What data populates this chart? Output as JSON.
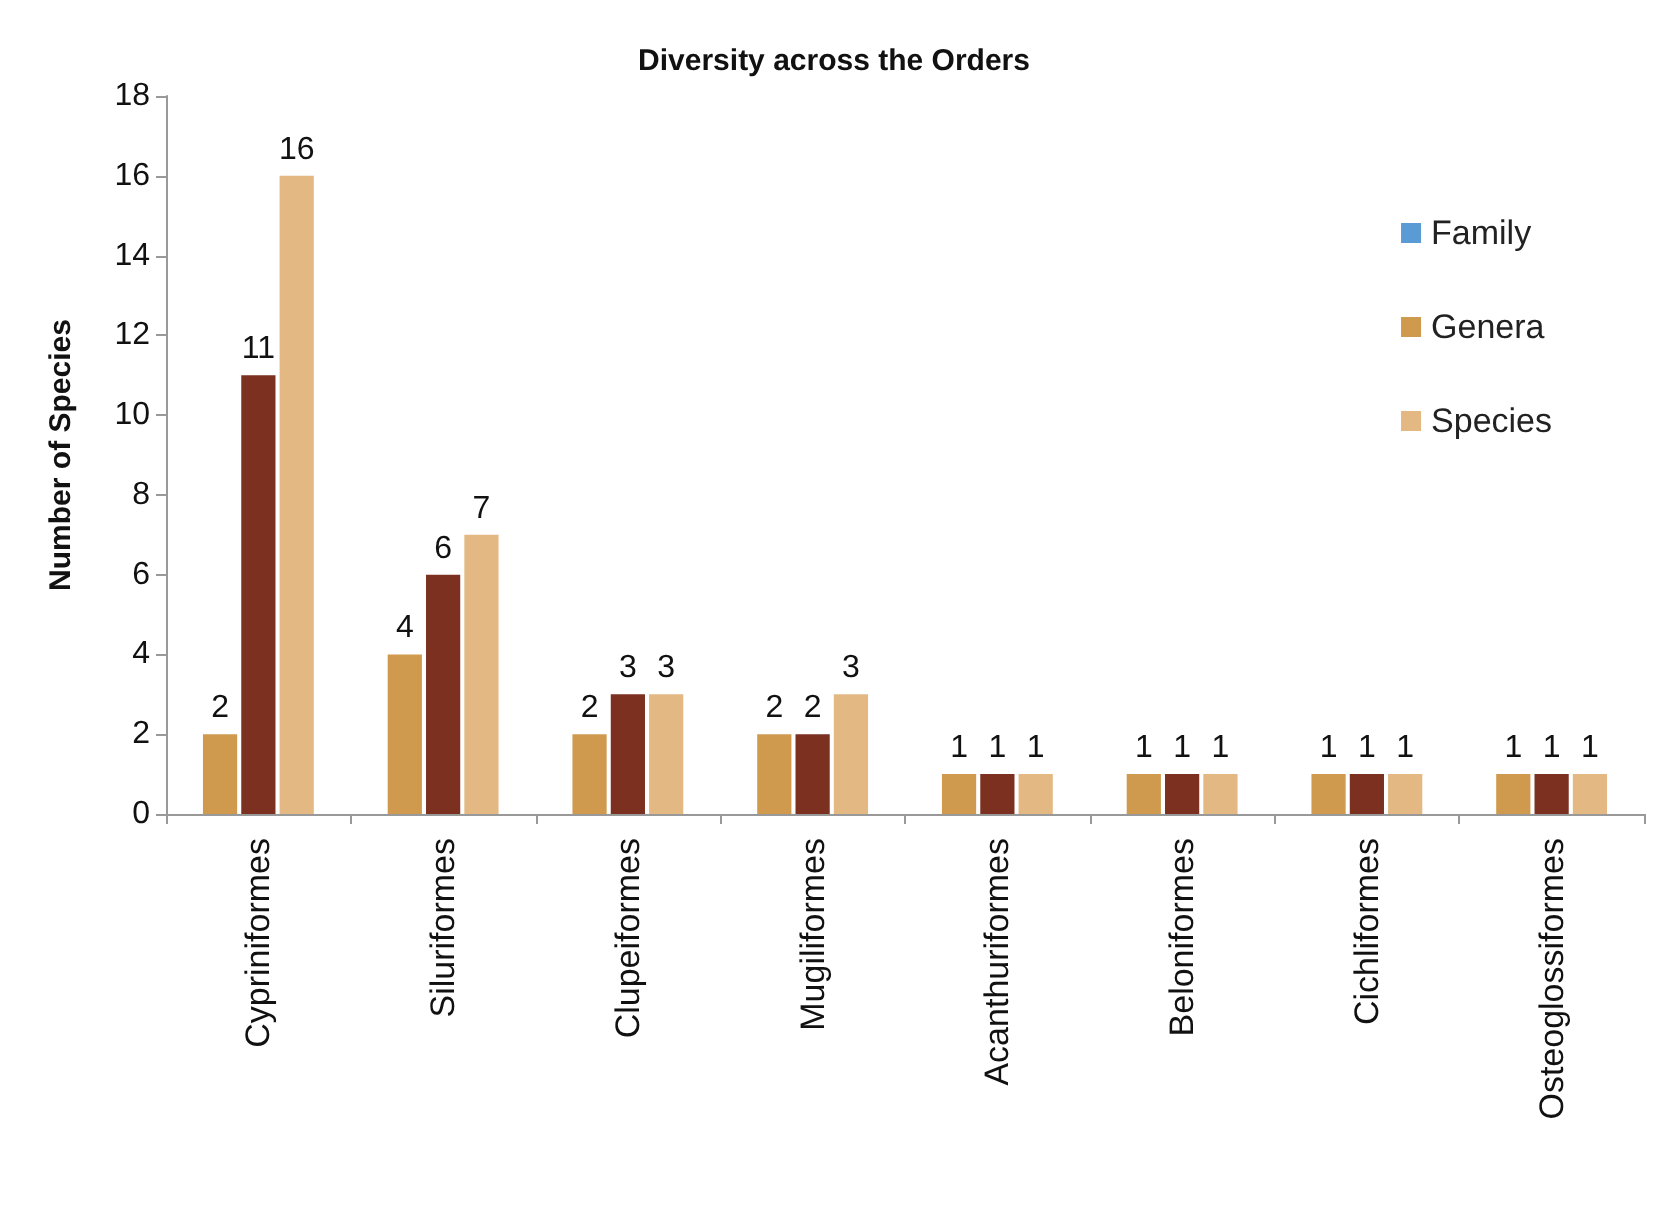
{
  "chart_data": {
    "type": "bar",
    "title": "Diversity across the Orders",
    "ylabel": "Number of Species",
    "categories": [
      "Cypriniformes",
      "Siluriformes",
      "Clupeiformes",
      "Mugiliformes",
      "Acanthuriformes",
      "Beloniformes",
      "Cichliformes",
      "Osteoglossiformes"
    ],
    "series": [
      {
        "name": "Family",
        "color": "#5b9bd5",
        "values": [
          null,
          null,
          null,
          null,
          null,
          null,
          null,
          null
        ]
      },
      {
        "name": "Genera",
        "color": "#d09a4e",
        "values": [
          2,
          4,
          2,
          2,
          1,
          1,
          1,
          1
        ]
      },
      {
        "color": "#7b3020",
        "values": [
          11,
          6,
          3,
          2,
          1,
          1,
          1,
          1
        ]
      },
      {
        "name": "Species",
        "color": "#e3b883",
        "values": [
          16,
          7,
          3,
          3,
          1,
          1,
          1,
          1
        ]
      }
    ],
    "ylim": [
      0,
      18
    ],
    "yticks": [
      0,
      2,
      4,
      6,
      8,
      10,
      12,
      14,
      16,
      18
    ],
    "data_labels": true,
    "legend": "top right",
    "grid": false
  }
}
